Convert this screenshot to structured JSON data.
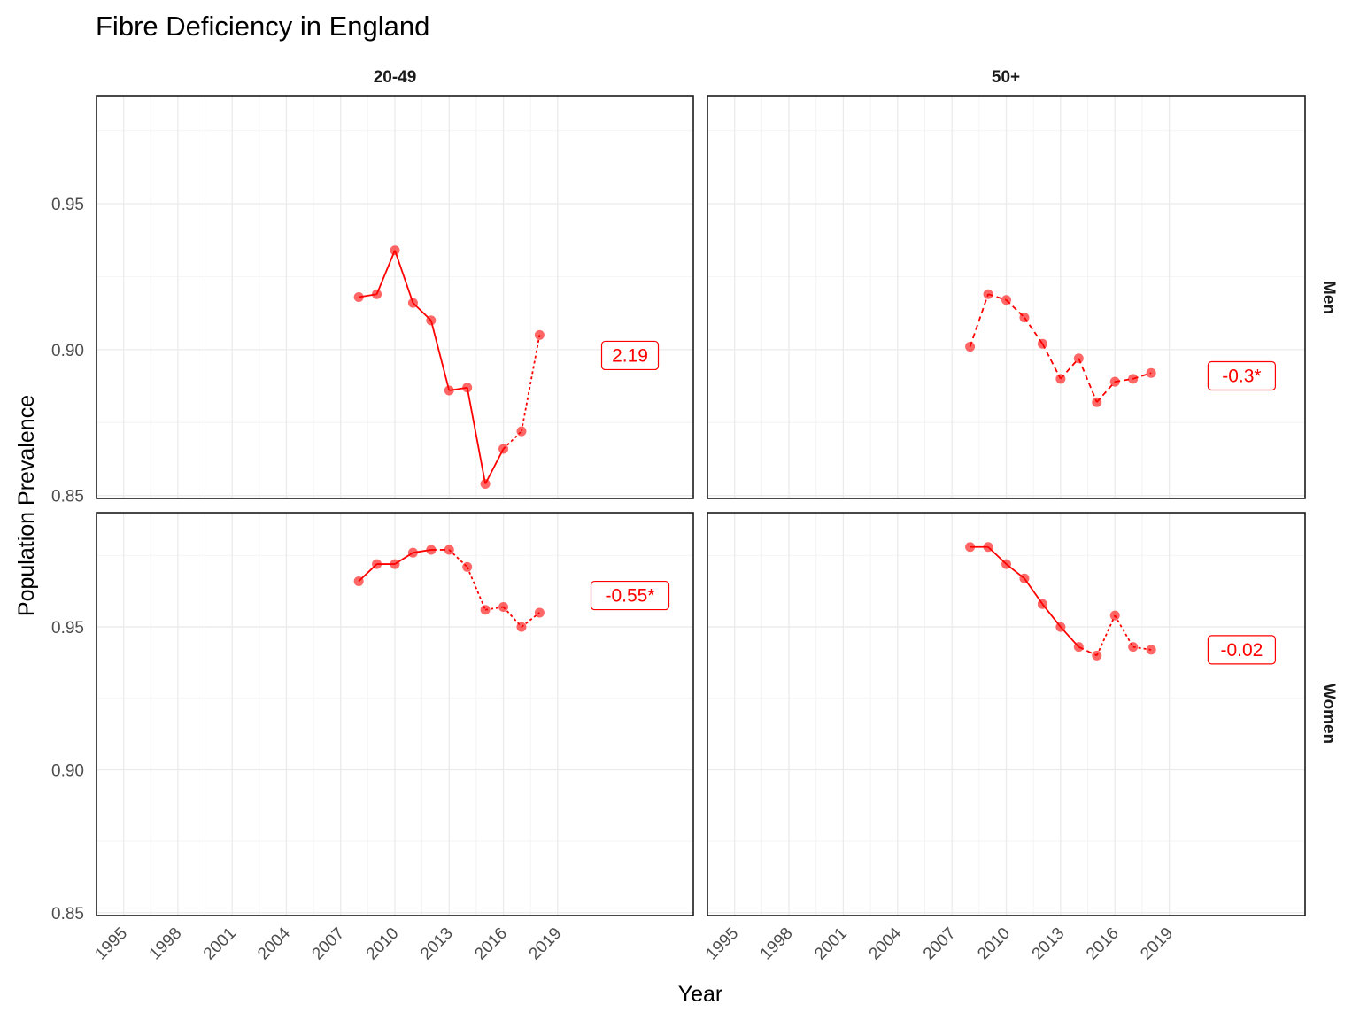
{
  "chart_data": {
    "type": "line",
    "title": "Fibre Deficiency in England",
    "xlabel": "Year",
    "ylabel": "Population Prevalence",
    "column_facets": [
      "20-49",
      "50+"
    ],
    "row_facets": [
      "Men",
      "Women"
    ],
    "x_ticks": [
      1995,
      1998,
      2001,
      2004,
      2007,
      2010,
      2013,
      2016,
      2019
    ],
    "xlim": [
      1993.5,
      2026.5
    ],
    "row_ylims": {
      "Men": [
        0.849,
        0.987
      ],
      "Women": [
        0.849,
        0.99
      ]
    },
    "y_ticks": {
      "Men": [
        0.85,
        0.9,
        0.95
      ],
      "Women": [
        0.85,
        0.9,
        0.95
      ]
    },
    "y_tick_labels": {
      "Men": [
        "0.85",
        "0.90",
        "0.95"
      ],
      "Women": [
        "0.85",
        "0.90",
        "0.95"
      ]
    },
    "grid": true,
    "colors": {
      "series": "#ff0000",
      "label_border": "#ff0000",
      "grid": "#ebebeb"
    },
    "panels": [
      {
        "sex": "Men",
        "age": "20-49",
        "x": [
          2008,
          2009,
          2010,
          2011,
          2012,
          2013,
          2014,
          2015,
          2016,
          2017,
          2018
        ],
        "y": [
          0.918,
          0.919,
          0.934,
          0.916,
          0.91,
          0.886,
          0.887,
          0.854,
          0.866,
          0.872,
          0.905
        ],
        "segments": [
          "solid",
          "solid",
          "solid",
          "solid",
          "solid",
          "solid",
          "solid",
          "solid",
          "dotted",
          "dotted"
        ],
        "label": "2.19",
        "label_x": 2023,
        "label_y": 0.898
      },
      {
        "sex": "Men",
        "age": "50+",
        "x": [
          2008,
          2009,
          2010,
          2011,
          2012,
          2013,
          2014,
          2015,
          2016,
          2017,
          2018
        ],
        "y": [
          0.901,
          0.919,
          0.917,
          0.911,
          0.902,
          0.89,
          0.897,
          0.882,
          0.889,
          0.89,
          0.892
        ],
        "segments": [
          "dashed",
          "dashed",
          "dashed",
          "dashed",
          "dashed",
          "dashed",
          "dashed",
          "dashed",
          "dashed",
          "dashed"
        ],
        "label": "-0.3*",
        "label_x": 2023,
        "label_y": 0.891
      },
      {
        "sex": "Women",
        "age": "20-49",
        "x": [
          2008,
          2009,
          2010,
          2011,
          2012,
          2013,
          2014,
          2015,
          2016,
          2017,
          2018
        ],
        "y": [
          0.966,
          0.972,
          0.972,
          0.976,
          0.977,
          0.977,
          0.971,
          0.956,
          0.957,
          0.95,
          0.955
        ],
        "segments": [
          "solid",
          "solid",
          "solid",
          "solid",
          "dashed",
          "dotted",
          "dotted",
          "dotted",
          "dotted",
          "dotted"
        ],
        "label": "-0.55*",
        "label_x": 2023,
        "label_y": 0.961
      },
      {
        "sex": "Women",
        "age": "50+",
        "x": [
          2008,
          2009,
          2010,
          2011,
          2012,
          2013,
          2014,
          2015,
          2016,
          2017,
          2018
        ],
        "y": [
          0.978,
          0.978,
          0.972,
          0.967,
          0.958,
          0.95,
          0.943,
          0.94,
          0.954,
          0.943,
          0.942
        ],
        "segments": [
          "solid",
          "solid",
          "solid",
          "solid",
          "solid",
          "solid",
          "dashed",
          "dotted",
          "dotted",
          "dotted"
        ],
        "label": "-0.02",
        "label_x": 2023,
        "label_y": 0.942
      }
    ]
  }
}
